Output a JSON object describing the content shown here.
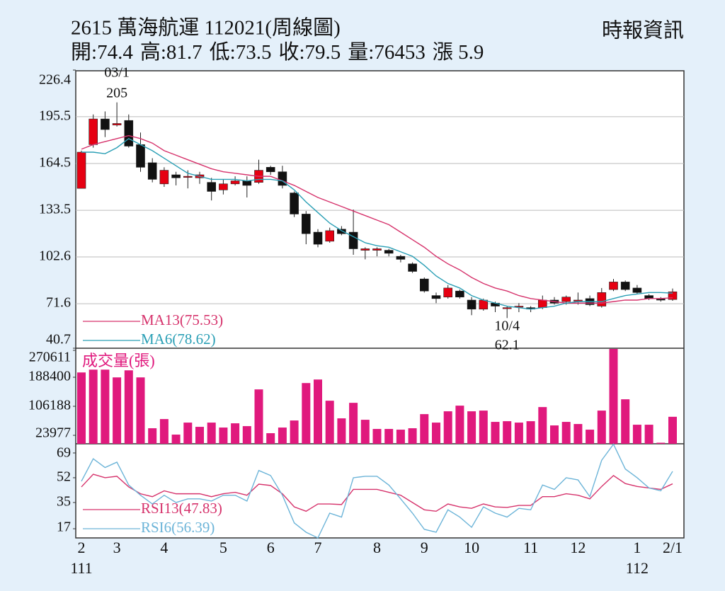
{
  "header": {
    "title": "2615  萬海航運 112021(周線圖)",
    "source": "時報資訊",
    "summary_labels": [
      "開:",
      "高:",
      "低:",
      "收:",
      "量:",
      "漲 "
    ],
    "change": 5.9
  },
  "chart_data": [
    {
      "type": "candlestick",
      "categories": [
        "2",
        null,
        null,
        "3",
        null,
        null,
        null,
        "4",
        null,
        null,
        null,
        null,
        "5",
        null,
        null,
        null,
        "6",
        null,
        null,
        null,
        "7",
        null,
        null,
        null,
        null,
        "8",
        null,
        null,
        null,
        "9",
        null,
        null,
        null,
        "10",
        null,
        null,
        null,
        null,
        "11",
        null,
        null,
        null,
        "12",
        null,
        null,
        null,
        null,
        "1",
        null,
        null,
        "2/1"
      ],
      "category_years": [
        "111",
        null,
        null,
        null,
        null,
        null,
        null,
        null,
        null,
        null,
        null,
        null,
        null,
        null,
        null,
        null,
        null,
        null,
        null,
        null,
        null,
        null,
        null,
        null,
        null,
        null,
        null,
        null,
        null,
        null,
        null,
        null,
        null,
        null,
        null,
        null,
        null,
        null,
        null,
        null,
        null,
        null,
        null,
        null,
        null,
        null,
        null,
        "112",
        null,
        null,
        null
      ],
      "open": [
        148,
        177,
        194,
        190,
        193,
        177,
        165,
        151,
        157,
        156,
        155,
        152,
        147,
        151,
        153,
        152,
        162,
        159,
        145,
        131,
        119,
        113,
        121,
        119,
        107,
        107,
        107,
        103,
        98,
        88,
        77,
        76,
        80,
        74,
        68,
        72,
        69,
        70,
        69,
        69,
        74,
        73,
        74,
        75,
        70,
        81,
        86,
        82,
        77,
        75,
        74.4
      ],
      "high": [
        173,
        197,
        199,
        205,
        197,
        185,
        168,
        162,
        159,
        160,
        159,
        155,
        154,
        156,
        156,
        167,
        163,
        163,
        146,
        133,
        121,
        122,
        123,
        134,
        109,
        109,
        108,
        104,
        99,
        89,
        79,
        84,
        81,
        76,
        75,
        73,
        70,
        72,
        70,
        77,
        76,
        77,
        79,
        77,
        82,
        88,
        87,
        84,
        78,
        76,
        81.7
      ],
      "low": [
        148,
        175,
        182,
        189,
        175,
        159,
        152,
        149,
        150,
        148,
        151,
        140,
        144,
        150,
        142,
        151,
        157,
        148,
        129,
        111,
        109,
        112,
        117,
        104,
        101,
        103,
        103,
        99,
        92,
        79,
        72,
        75,
        75,
        64,
        67,
        66,
        62.1,
        66,
        66,
        68,
        71,
        71,
        71,
        70,
        69,
        80,
        80,
        78,
        74,
        73,
        73.5
      ],
      "close": [
        172,
        194,
        187,
        191,
        176,
        162,
        154,
        160,
        155,
        156,
        157,
        146,
        151,
        153,
        150,
        160,
        159,
        150,
        131,
        118,
        111,
        120,
        118,
        108,
        108,
        108,
        105,
        101,
        93,
        80,
        75,
        82,
        76,
        68,
        74,
        70,
        69,
        70,
        68,
        74,
        72,
        76,
        74,
        71,
        79,
        86,
        81,
        79,
        75,
        74,
        79.5
      ],
      "up_color": "#e60012",
      "down_color": "#111111",
      "series": [
        {
          "name": "MA13(75.53)",
          "color": "#d6336c",
          "values": [
            174,
            177,
            179,
            181,
            183,
            181,
            178,
            173,
            170,
            167,
            164,
            161,
            159,
            158,
            157,
            156,
            156,
            153,
            150,
            146,
            142,
            139,
            136,
            133,
            130,
            127,
            124,
            119,
            114,
            109,
            103,
            98,
            94,
            89,
            85,
            82,
            80,
            77,
            75,
            74,
            73,
            72,
            72,
            72,
            72,
            73,
            74,
            74,
            75,
            75,
            75.53
          ]
        },
        {
          "name": "MA6(78.62)",
          "color": "#2a9fb5",
          "values": [
            172,
            172,
            171,
            175,
            181,
            177,
            173,
            168,
            163,
            158,
            156,
            154,
            154,
            154,
            153,
            154,
            154,
            153,
            147,
            139,
            132,
            125,
            120,
            116,
            112,
            110,
            109,
            106,
            103,
            97,
            90,
            85,
            82,
            77,
            74,
            72,
            70,
            69,
            68,
            69,
            70,
            72,
            73,
            73,
            73,
            75,
            77,
            78,
            79,
            79,
            78.62
          ]
        }
      ],
      "high_annotation": {
        "text": "03/1",
        "index": 3
      },
      "low_annotation": {
        "text": "10/4",
        "index": 36
      },
      "ylim": [
        40.7,
        226.4
      ],
      "yticks": [
        226.4,
        195.5,
        164.5,
        133.5,
        102.6,
        71.6,
        40.7
      ],
      "grid": true
    },
    {
      "type": "bar",
      "title": "成交量(張)",
      "color": "#e0197d",
      "values": [
        202000,
        210000,
        210000,
        188000,
        208000,
        188000,
        44000,
        70000,
        26000,
        60000,
        48000,
        60000,
        46000,
        58000,
        50000,
        154000,
        30000,
        46000,
        66000,
        172000,
        182000,
        122000,
        72000,
        116000,
        68000,
        42000,
        42000,
        40000,
        44000,
        84000,
        60000,
        92000,
        108000,
        92000,
        94000,
        62000,
        64000,
        60000,
        64000,
        104000,
        52000,
        62000,
        56000,
        40000,
        94000,
        270000,
        126000,
        54000,
        54000,
        3000,
        76453
      ],
      "ylim": [
        0,
        270611
      ],
      "yticks": [
        270611,
        188400,
        106188,
        23977
      ],
      "grid": false
    },
    {
      "type": "line",
      "series": [
        {
          "name": "RSI13(47.83)",
          "color": "#d6336c",
          "values": [
            45.7,
            54.4,
            52,
            53,
            45.7,
            41,
            39,
            43,
            41,
            41,
            41,
            39,
            41,
            42,
            40,
            47.6,
            46.7,
            41,
            32,
            29,
            34,
            34,
            33.6,
            44,
            44,
            44,
            42,
            40,
            35,
            30,
            29,
            34,
            32,
            31,
            34,
            32,
            31.6,
            33,
            33,
            39,
            39,
            41,
            40,
            37.5,
            46,
            53.5,
            48,
            46,
            45,
            44,
            47.83
          ]
        },
        {
          "name": "RSI6(56.39)",
          "color": "#6cb4d8",
          "values": [
            49.6,
            65,
            59,
            62.7,
            47,
            40,
            34,
            40,
            35,
            37.5,
            37.5,
            36,
            40,
            40,
            36,
            57,
            53.5,
            40,
            21,
            14.6,
            10.7,
            27.7,
            25,
            52,
            53,
            53,
            47,
            37.5,
            27.7,
            16.6,
            14.6,
            30,
            25,
            18,
            32,
            27.7,
            25,
            31,
            30,
            47,
            44,
            52,
            50.5,
            39,
            64,
            75,
            58,
            52,
            45,
            43,
            56.39
          ]
        }
      ],
      "ylim": [
        10.7,
        75.3
      ],
      "yticks": [
        69,
        52,
        35,
        17
      ],
      "grid": false
    }
  ]
}
